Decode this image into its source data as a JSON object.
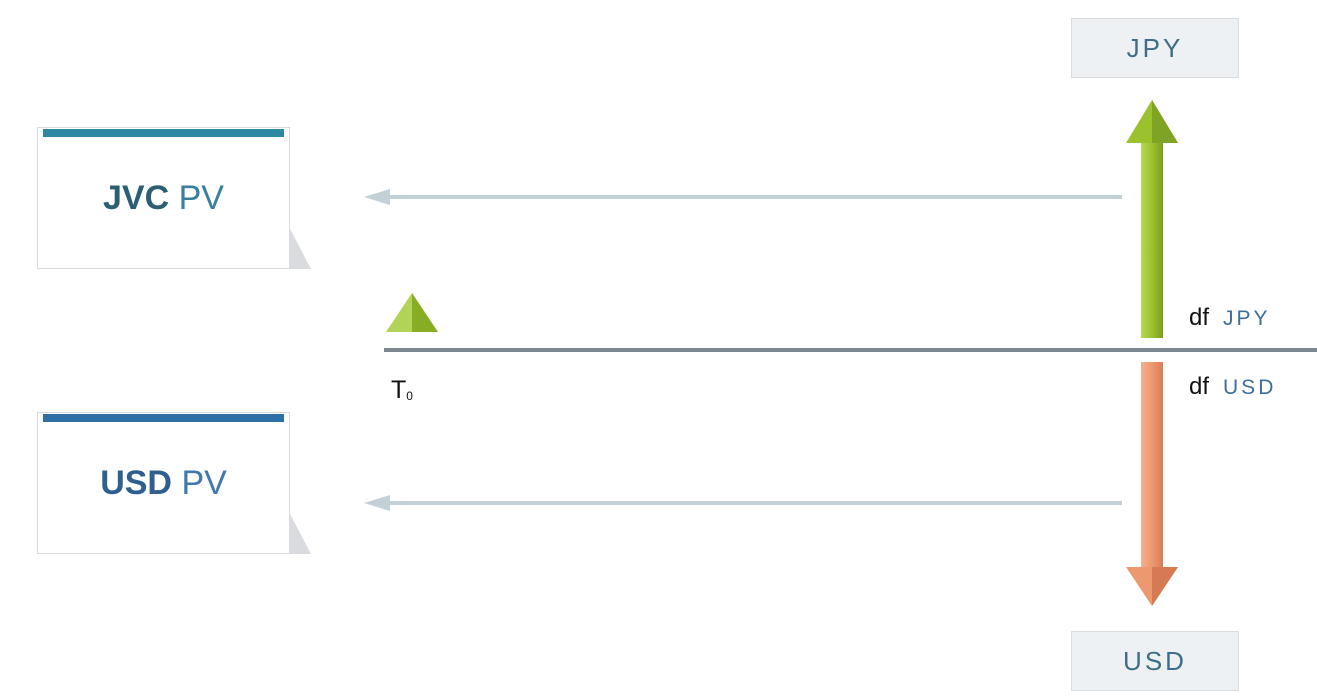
{
  "currencies": {
    "top": "JPY",
    "bottom": "USD"
  },
  "pv_cards": {
    "jvc": {
      "currency": "JVC",
      "suffix": "PV"
    },
    "usd": {
      "currency": "USD",
      "suffix": "PV"
    }
  },
  "discount_factors": {
    "jpy": {
      "prefix": "df",
      "currency": "JPY"
    },
    "usd": {
      "prefix": "df",
      "currency": "USD"
    }
  },
  "timeline": {
    "start_label": "T",
    "start_subscript": "0"
  },
  "colors": {
    "timeline": "#7b8790",
    "pv_arrow": "#c3d0d8",
    "jpy_arrow": "#9cc12f",
    "usd_arrow": "#ee9870",
    "start_marker": "#96bf35"
  }
}
